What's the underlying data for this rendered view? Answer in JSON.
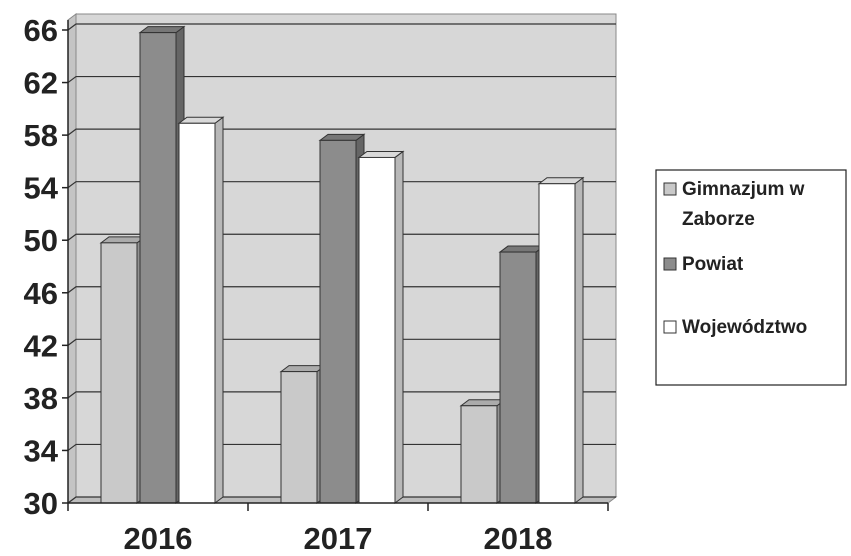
{
  "chart_data": {
    "type": "bar",
    "categories": [
      "2016",
      "2017",
      "2018"
    ],
    "series": [
      {
        "name": "Gimnazjum w Zaborze",
        "name_lines": [
          "Gimnazjum w",
          "Zaborze"
        ],
        "values": [
          49.8,
          40.0,
          37.4
        ],
        "color": "#c9c9c9"
      },
      {
        "name": "Powiat",
        "name_lines": [
          "Powiat"
        ],
        "values": [
          65.8,
          57.6,
          49.1
        ],
        "color": "#8c8c8c"
      },
      {
        "name": "Województwo",
        "name_lines": [
          "Województwo"
        ],
        "values": [
          58.9,
          56.3,
          54.3
        ],
        "color": "#ffffff"
      }
    ],
    "ylim": [
      30,
      66
    ],
    "yticks": [
      "30",
      "34",
      "38",
      "42",
      "46",
      "50",
      "54",
      "58",
      "62",
      "66"
    ],
    "grid": true,
    "legend": "right",
    "style": "3d-clustered-column"
  }
}
